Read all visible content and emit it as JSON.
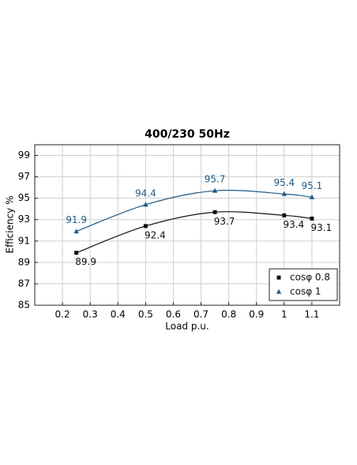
{
  "chart_data": {
    "type": "line",
    "title": "400/230 50Hz",
    "x_label": "Load p.u.",
    "y_label": "Efficiency %",
    "x": [
      0.25,
      0.5,
      0.75,
      1.0,
      1.1
    ],
    "series": [
      {
        "name": "cosφ 0.8",
        "color": "#111111",
        "marker": "square",
        "values": [
          89.9,
          92.4,
          93.7,
          93.4,
          93.1
        ]
      },
      {
        "name": "cosφ 1",
        "color": "#1f5a85",
        "marker": "triangle",
        "values": [
          91.9,
          94.4,
          95.7,
          95.4,
          95.1
        ]
      }
    ],
    "xlim": [
      0.1,
      1.2
    ],
    "xticks": [
      0.2,
      0.3,
      0.4,
      0.5,
      0.6,
      0.7,
      0.8,
      0.9,
      1.0,
      1.1
    ],
    "ylim": [
      85,
      100
    ],
    "yticks": [
      85,
      87,
      89,
      91,
      93,
      95,
      97,
      99
    ],
    "grid": true,
    "legend": "lower right"
  }
}
